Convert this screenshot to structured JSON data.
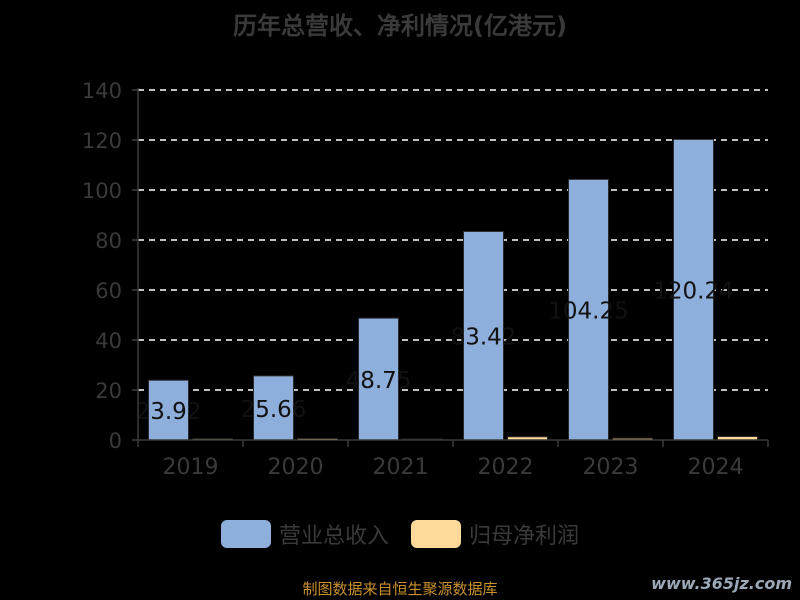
{
  "title": "历年总营收、净利情况(亿港元)",
  "source_note": "制图数据来自恒生聚源数据库",
  "watermark": "www.365jz.com",
  "colors": {
    "background": "#000000",
    "revenue": "#8eaedb",
    "net_profit": "#ffd99a",
    "grid": "#ffffff",
    "axis_text": "#3a3a3a"
  },
  "chart_data": {
    "type": "bar",
    "title": "历年总营收、净利情况(亿港元)",
    "categories": [
      "2019",
      "2020",
      "2021",
      "2022",
      "2023",
      "2024"
    ],
    "series": [
      {
        "name": "营业总收入",
        "values": [
          23.92,
          25.66,
          48.75,
          83.42,
          104.25,
          120.24
        ],
        "labels": [
          "23.92",
          "25.66",
          "48.75",
          "83.42",
          "104.25",
          "120.24"
        ]
      },
      {
        "name": "归母净利润",
        "values": [
          0.5,
          0.6,
          0.4,
          1.3,
          0.7,
          1.4
        ]
      }
    ],
    "ylim": [
      0,
      140
    ],
    "yticks": [
      0,
      20,
      40,
      60,
      80,
      100,
      120,
      140
    ],
    "grid": true,
    "legend_position": "bottom"
  },
  "legend": [
    {
      "label": "营业总收入",
      "color": "#8eaedb"
    },
    {
      "label": "归母净利润",
      "color": "#ffd99a"
    }
  ]
}
